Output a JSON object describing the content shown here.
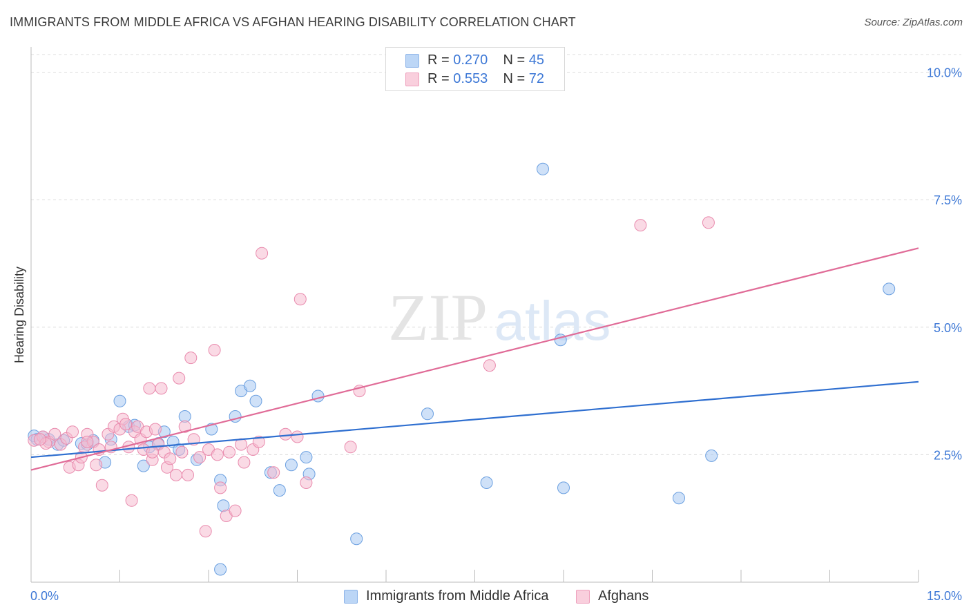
{
  "title": "IMMIGRANTS FROM MIDDLE AFRICA VS AFGHAN HEARING DISABILITY CORRELATION CHART",
  "source": "Source: ZipAtlas.com",
  "watermark": {
    "zip": "ZIP",
    "atlas": "atlas"
  },
  "legend_stats": [
    {
      "r_label": "R = ",
      "r_value": "0.270",
      "n_label": "N = ",
      "n_value": "45"
    },
    {
      "r_label": "R = ",
      "r_value": "0.553",
      "n_label": "N = ",
      "n_value": "72"
    }
  ],
  "chart_data": {
    "type": "scatter",
    "title": "IMMIGRANTS FROM MIDDLE AFRICA VS AFGHAN HEARING DISABILITY CORRELATION CHART",
    "xlabel": "",
    "ylabel": "Hearing Disability",
    "xlim": [
      0,
      15
    ],
    "ylim": [
      0,
      10.4
    ],
    "x_tick_labels": [
      "0.0%",
      "15.0%"
    ],
    "y_ticks": [
      {
        "value": 2.5,
        "label": "2.5%"
      },
      {
        "value": 5.0,
        "label": "5.0%"
      },
      {
        "value": 7.5,
        "label": "7.5%"
      },
      {
        "value": 10.0,
        "label": "10.0%"
      }
    ],
    "grid": true,
    "legend_position": "bottom",
    "series": [
      {
        "name": "Immigrants from Middle Africa",
        "color": "#a7c8f2",
        "stroke": "#6a9fe0",
        "line_color": "#2f6fd0",
        "r": 0.27,
        "n": 45,
        "trend": {
          "x": [
            0,
            15
          ],
          "y": [
            2.45,
            3.93
          ]
        },
        "points": [
          [
            0.05,
            2.87
          ],
          [
            0.2,
            2.85
          ],
          [
            0.3,
            2.8
          ],
          [
            0.45,
            2.7
          ],
          [
            0.55,
            2.78
          ],
          [
            0.85,
            2.72
          ],
          [
            0.95,
            2.7
          ],
          [
            1.05,
            2.78
          ],
          [
            1.25,
            2.35
          ],
          [
            1.35,
            2.8
          ],
          [
            1.5,
            3.55
          ],
          [
            1.65,
            3.05
          ],
          [
            1.75,
            3.08
          ],
          [
            1.9,
            2.28
          ],
          [
            2.0,
            2.65
          ],
          [
            2.15,
            2.72
          ],
          [
            2.25,
            2.95
          ],
          [
            2.4,
            2.75
          ],
          [
            2.5,
            2.6
          ],
          [
            2.6,
            3.25
          ],
          [
            2.8,
            2.4
          ],
          [
            3.05,
            3.0
          ],
          [
            3.2,
            2.0
          ],
          [
            3.25,
            1.5
          ],
          [
            3.2,
            0.25
          ],
          [
            3.45,
            3.25
          ],
          [
            3.55,
            3.75
          ],
          [
            3.7,
            3.85
          ],
          [
            3.8,
            3.55
          ],
          [
            4.05,
            2.15
          ],
          [
            4.2,
            1.8
          ],
          [
            4.4,
            2.3
          ],
          [
            4.65,
            2.45
          ],
          [
            4.7,
            2.12
          ],
          [
            4.85,
            3.65
          ],
          [
            5.5,
            0.85
          ],
          [
            6.7,
            3.3
          ],
          [
            7.7,
            1.95
          ],
          [
            8.65,
            8.1
          ],
          [
            8.95,
            4.75
          ],
          [
            9.0,
            1.85
          ],
          [
            10.95,
            1.65
          ],
          [
            11.5,
            2.48
          ],
          [
            14.5,
            5.75
          ],
          [
            0.1,
            2.8
          ]
        ]
      },
      {
        "name": "Afghans",
        "color": "#f6bcd0",
        "stroke": "#e98aad",
        "line_color": "#e06b97",
        "r": 0.553,
        "n": 72,
        "trend": {
          "x": [
            0,
            15
          ],
          "y": [
            2.2,
            6.55
          ]
        },
        "points": [
          [
            0.05,
            2.78
          ],
          [
            0.2,
            2.85
          ],
          [
            0.3,
            2.75
          ],
          [
            0.4,
            2.9
          ],
          [
            0.5,
            2.7
          ],
          [
            0.6,
            2.82
          ],
          [
            0.65,
            2.25
          ],
          [
            0.7,
            2.95
          ],
          [
            0.8,
            2.3
          ],
          [
            0.85,
            2.45
          ],
          [
            0.9,
            2.65
          ],
          [
            0.95,
            2.9
          ],
          [
            1.05,
            2.75
          ],
          [
            1.1,
            2.3
          ],
          [
            1.15,
            2.6
          ],
          [
            1.2,
            1.9
          ],
          [
            1.3,
            2.9
          ],
          [
            1.4,
            3.05
          ],
          [
            1.5,
            3.0
          ],
          [
            1.55,
            3.2
          ],
          [
            1.6,
            3.1
          ],
          [
            1.65,
            2.65
          ],
          [
            1.7,
            1.6
          ],
          [
            1.75,
            2.95
          ],
          [
            1.8,
            3.05
          ],
          [
            1.85,
            2.8
          ],
          [
            1.9,
            2.6
          ],
          [
            1.95,
            2.95
          ],
          [
            2.0,
            3.8
          ],
          [
            2.05,
            2.4
          ],
          [
            2.1,
            3.0
          ],
          [
            2.15,
            2.7
          ],
          [
            2.2,
            3.8
          ],
          [
            2.25,
            2.55
          ],
          [
            2.3,
            2.25
          ],
          [
            2.35,
            2.42
          ],
          [
            2.45,
            2.1
          ],
          [
            2.5,
            4.0
          ],
          [
            2.55,
            2.55
          ],
          [
            2.6,
            3.05
          ],
          [
            2.65,
            2.1
          ],
          [
            2.7,
            4.4
          ],
          [
            2.75,
            2.8
          ],
          [
            2.85,
            2.45
          ],
          [
            2.95,
            1.0
          ],
          [
            3.0,
            2.6
          ],
          [
            3.1,
            4.55
          ],
          [
            3.15,
            2.5
          ],
          [
            3.2,
            1.85
          ],
          [
            3.3,
            1.3
          ],
          [
            3.35,
            2.55
          ],
          [
            3.45,
            1.4
          ],
          [
            3.55,
            2.7
          ],
          [
            3.6,
            2.35
          ],
          [
            3.75,
            2.6
          ],
          [
            3.85,
            2.75
          ],
          [
            3.9,
            6.45
          ],
          [
            4.1,
            2.15
          ],
          [
            4.3,
            2.9
          ],
          [
            4.5,
            2.85
          ],
          [
            4.55,
            5.55
          ],
          [
            4.65,
            1.95
          ],
          [
            5.4,
            2.65
          ],
          [
            5.55,
            3.75
          ],
          [
            7.75,
            4.25
          ],
          [
            10.3,
            7.0
          ],
          [
            11.45,
            7.05
          ],
          [
            0.25,
            2.72
          ],
          [
            0.95,
            2.75
          ],
          [
            1.35,
            2.65
          ],
          [
            2.05,
            2.55
          ],
          [
            0.15,
            2.8
          ]
        ]
      }
    ]
  }
}
